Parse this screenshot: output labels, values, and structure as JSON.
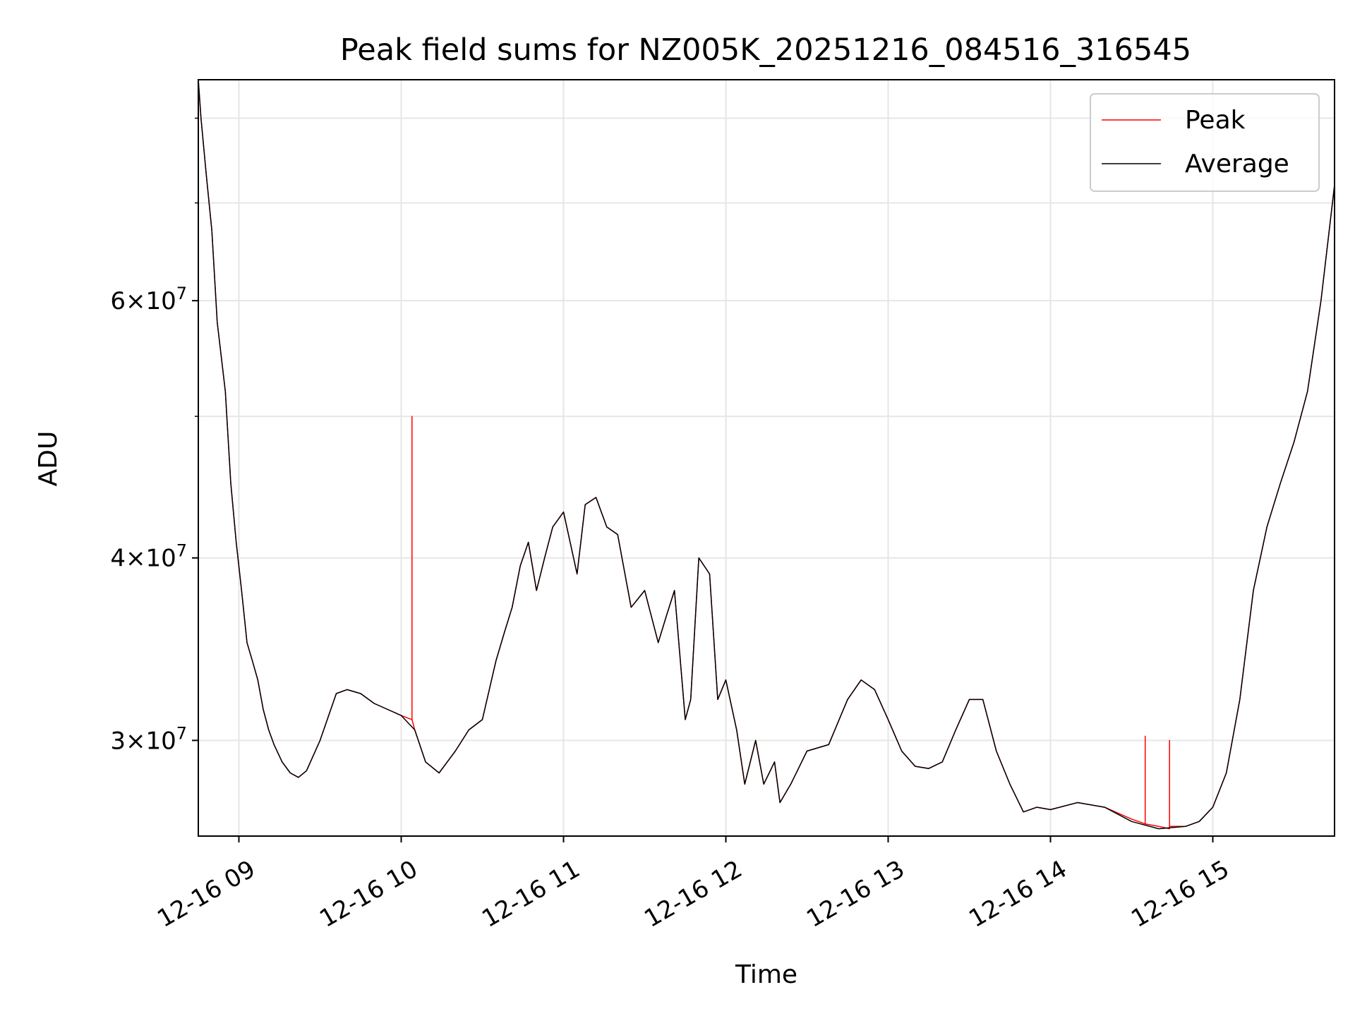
{
  "chart_data": {
    "type": "line",
    "title": "Peak field sums for NZ005K_20251216_084516_316545",
    "xlabel": "Time",
    "ylabel": "ADU",
    "y_scale": "log",
    "ylim": [
      25800000,
      85000000
    ],
    "xlim": [
      "2025-12-16 08:45",
      "2025-12-16 15:45"
    ],
    "grid": true,
    "legend_position": "top-right",
    "x_ticks": [
      {
        "x": "2025-12-16 09:00",
        "label": "12-16 09"
      },
      {
        "x": "2025-12-16 10:00",
        "label": "12-16 10"
      },
      {
        "x": "2025-12-16 11:00",
        "label": "12-16 11"
      },
      {
        "x": "2025-12-16 12:00",
        "label": "12-16 12"
      },
      {
        "x": "2025-12-16 13:00",
        "label": "12-16 13"
      },
      {
        "x": "2025-12-16 14:00",
        "label": "12-16 14"
      },
      {
        "x": "2025-12-16 15:00",
        "label": "12-16 15"
      }
    ],
    "y_ticks": [
      {
        "value": 30000000,
        "base": "3",
        "exp": "7"
      },
      {
        "value": 40000000,
        "base": "4",
        "exp": "7"
      },
      {
        "value": 60000000,
        "base": "6",
        "exp": "7"
      }
    ],
    "y_minor_ticks": [
      50000000,
      70000000,
      80000000
    ],
    "series": [
      {
        "name": "Peak",
        "color": "#ff0000",
        "x": [
          "2025-12-16 08:45",
          "2025-12-16 08:46",
          "2025-12-16 08:48",
          "2025-12-16 08:50",
          "2025-12-16 08:52",
          "2025-12-16 08:55",
          "2025-12-16 08:57",
          "2025-12-16 08:59",
          "2025-12-16 09:01",
          "2025-12-16 09:03",
          "2025-12-16 09:05",
          "2025-12-16 09:07",
          "2025-12-16 09:09",
          "2025-12-16 09:11",
          "2025-12-16 09:13",
          "2025-12-16 09:16",
          "2025-12-16 09:19",
          "2025-12-16 09:22",
          "2025-12-16 09:25",
          "2025-12-16 09:30",
          "2025-12-16 09:36",
          "2025-12-16 09:40",
          "2025-12-16 09:45",
          "2025-12-16 09:50",
          "2025-12-16 09:55",
          "2025-12-16 10:00",
          "2025-12-16 10:04",
          "2025-12-16 10:04",
          "2025-12-16 10:04",
          "2025-12-16 10:05",
          "2025-12-16 10:09",
          "2025-12-16 10:14",
          "2025-12-16 10:20",
          "2025-12-16 10:25",
          "2025-12-16 10:30",
          "2025-12-16 10:35",
          "2025-12-16 10:38",
          "2025-12-16 10:41",
          "2025-12-16 10:44",
          "2025-12-16 10:47",
          "2025-12-16 10:50",
          "2025-12-16 10:53",
          "2025-12-16 10:56",
          "2025-12-16 11:00",
          "2025-12-16 11:05",
          "2025-12-16 11:08",
          "2025-12-16 11:12",
          "2025-12-16 11:16",
          "2025-12-16 11:20",
          "2025-12-16 11:25",
          "2025-12-16 11:30",
          "2025-12-16 11:35",
          "2025-12-16 11:38",
          "2025-12-16 11:41",
          "2025-12-16 11:45",
          "2025-12-16 11:47",
          "2025-12-16 11:50",
          "2025-12-16 11:54",
          "2025-12-16 11:57",
          "2025-12-16 12:00",
          "2025-12-16 12:04",
          "2025-12-16 12:07",
          "2025-12-16 12:11",
          "2025-12-16 12:14",
          "2025-12-16 12:18",
          "2025-12-16 12:20",
          "2025-12-16 12:24",
          "2025-12-16 12:30",
          "2025-12-16 12:38",
          "2025-12-16 12:45",
          "2025-12-16 12:50",
          "2025-12-16 12:55",
          "2025-12-16 13:00",
          "2025-12-16 13:05",
          "2025-12-16 13:10",
          "2025-12-16 13:15",
          "2025-12-16 13:20",
          "2025-12-16 13:25",
          "2025-12-16 13:30",
          "2025-12-16 13:35",
          "2025-12-16 13:40",
          "2025-12-16 13:45",
          "2025-12-16 13:50",
          "2025-12-16 13:55",
          "2025-12-16 14:00",
          "2025-12-16 14:10",
          "2025-12-16 14:20",
          "2025-12-16 14:30",
          "2025-12-16 14:35",
          "2025-12-16 14:35",
          "2025-12-16 14:35",
          "2025-12-16 14:40",
          "2025-12-16 14:44",
          "2025-12-16 14:44",
          "2025-12-16 14:44",
          "2025-12-16 14:50",
          "2025-12-16 14:55",
          "2025-12-16 15:00",
          "2025-12-16 15:05",
          "2025-12-16 15:10",
          "2025-12-16 15:15",
          "2025-12-16 15:20",
          "2025-12-16 15:25",
          "2025-12-16 15:30",
          "2025-12-16 15:35",
          "2025-12-16 15:40",
          "2025-12-16 15:45"
        ],
        "y": [
          85000000,
          80000000,
          73000000,
          67000000,
          58000000,
          52000000,
          45000000,
          41000000,
          38000000,
          35000000,
          34000000,
          33000000,
          31500000,
          30500000,
          29800000,
          29000000,
          28500000,
          28300000,
          28600000,
          30000000,
          32300000,
          32500000,
          32300000,
          31800000,
          31500000,
          31200000,
          31000000,
          50000000,
          31000000,
          30500000,
          29000000,
          28500000,
          29500000,
          30500000,
          31000000,
          34000000,
          35500000,
          37000000,
          39500000,
          41000000,
          38000000,
          40000000,
          42000000,
          43000000,
          39000000,
          43500000,
          44000000,
          42000000,
          41500000,
          37000000,
          38000000,
          35000000,
          36500000,
          38000000,
          31000000,
          32000000,
          40000000,
          39000000,
          32000000,
          33000000,
          30500000,
          28000000,
          30000000,
          28000000,
          29000000,
          27200000,
          28000000,
          29500000,
          29800000,
          32000000,
          33000000,
          32500000,
          31000000,
          29500000,
          28800000,
          28700000,
          29000000,
          30500000,
          32000000,
          32000000,
          29500000,
          28000000,
          26800000,
          27000000,
          26900000,
          27200000,
          27000000,
          26500000,
          26300000,
          30200000,
          26300000,
          26200000,
          26100000,
          30000000,
          26200000,
          26200000,
          26400000,
          27000000,
          28500000,
          32000000,
          38000000,
          42000000,
          45000000,
          48000000,
          52000000,
          60000000,
          72000000
        ]
      },
      {
        "name": "Average",
        "color": "#000000",
        "x": [
          "2025-12-16 08:45",
          "2025-12-16 08:46",
          "2025-12-16 08:48",
          "2025-12-16 08:50",
          "2025-12-16 08:52",
          "2025-12-16 08:55",
          "2025-12-16 08:57",
          "2025-12-16 08:59",
          "2025-12-16 09:01",
          "2025-12-16 09:03",
          "2025-12-16 09:05",
          "2025-12-16 09:07",
          "2025-12-16 09:09",
          "2025-12-16 09:11",
          "2025-12-16 09:13",
          "2025-12-16 09:16",
          "2025-12-16 09:19",
          "2025-12-16 09:22",
          "2025-12-16 09:25",
          "2025-12-16 09:30",
          "2025-12-16 09:36",
          "2025-12-16 09:40",
          "2025-12-16 09:45",
          "2025-12-16 09:50",
          "2025-12-16 09:55",
          "2025-12-16 10:00",
          "2025-12-16 10:05",
          "2025-12-16 10:09",
          "2025-12-16 10:14",
          "2025-12-16 10:20",
          "2025-12-16 10:25",
          "2025-12-16 10:30",
          "2025-12-16 10:35",
          "2025-12-16 10:38",
          "2025-12-16 10:41",
          "2025-12-16 10:44",
          "2025-12-16 10:47",
          "2025-12-16 10:50",
          "2025-12-16 10:53",
          "2025-12-16 10:56",
          "2025-12-16 11:00",
          "2025-12-16 11:05",
          "2025-12-16 11:08",
          "2025-12-16 11:12",
          "2025-12-16 11:16",
          "2025-12-16 11:20",
          "2025-12-16 11:25",
          "2025-12-16 11:30",
          "2025-12-16 11:35",
          "2025-12-16 11:38",
          "2025-12-16 11:41",
          "2025-12-16 11:45",
          "2025-12-16 11:47",
          "2025-12-16 11:50",
          "2025-12-16 11:54",
          "2025-12-16 11:57",
          "2025-12-16 12:00",
          "2025-12-16 12:04",
          "2025-12-16 12:07",
          "2025-12-16 12:11",
          "2025-12-16 12:14",
          "2025-12-16 12:18",
          "2025-12-16 12:20",
          "2025-12-16 12:24",
          "2025-12-16 12:30",
          "2025-12-16 12:38",
          "2025-12-16 12:45",
          "2025-12-16 12:50",
          "2025-12-16 12:55",
          "2025-12-16 13:00",
          "2025-12-16 13:05",
          "2025-12-16 13:10",
          "2025-12-16 13:15",
          "2025-12-16 13:20",
          "2025-12-16 13:25",
          "2025-12-16 13:30",
          "2025-12-16 13:35",
          "2025-12-16 13:40",
          "2025-12-16 13:45",
          "2025-12-16 13:50",
          "2025-12-16 13:55",
          "2025-12-16 14:00",
          "2025-12-16 14:10",
          "2025-12-16 14:20",
          "2025-12-16 14:30",
          "2025-12-16 14:40",
          "2025-12-16 14:50",
          "2025-12-16 14:55",
          "2025-12-16 15:00",
          "2025-12-16 15:05",
          "2025-12-16 15:10",
          "2025-12-16 15:15",
          "2025-12-16 15:20",
          "2025-12-16 15:25",
          "2025-12-16 15:30",
          "2025-12-16 15:35",
          "2025-12-16 15:40",
          "2025-12-16 15:45"
        ],
        "y": [
          85000000,
          80000000,
          73000000,
          67000000,
          58000000,
          52000000,
          45000000,
          41000000,
          38000000,
          35000000,
          34000000,
          33000000,
          31500000,
          30500000,
          29800000,
          29000000,
          28500000,
          28300000,
          28600000,
          30000000,
          32300000,
          32500000,
          32300000,
          31800000,
          31500000,
          31200000,
          30500000,
          29000000,
          28500000,
          29500000,
          30500000,
          31000000,
          34000000,
          35500000,
          37000000,
          39500000,
          41000000,
          38000000,
          40000000,
          42000000,
          43000000,
          39000000,
          43500000,
          44000000,
          42000000,
          41500000,
          37000000,
          38000000,
          35000000,
          36500000,
          38000000,
          31000000,
          32000000,
          40000000,
          39000000,
          32000000,
          33000000,
          30500000,
          28000000,
          30000000,
          28000000,
          29000000,
          27200000,
          28000000,
          29500000,
          29800000,
          32000000,
          33000000,
          32500000,
          31000000,
          29500000,
          28800000,
          28700000,
          29000000,
          30500000,
          32000000,
          32000000,
          29500000,
          28000000,
          26800000,
          27000000,
          26900000,
          27200000,
          27000000,
          26400000,
          26100000,
          26200000,
          26400000,
          27000000,
          28500000,
          32000000,
          38000000,
          42000000,
          45000000,
          48000000,
          52000000,
          60000000,
          72000000
        ]
      }
    ]
  }
}
